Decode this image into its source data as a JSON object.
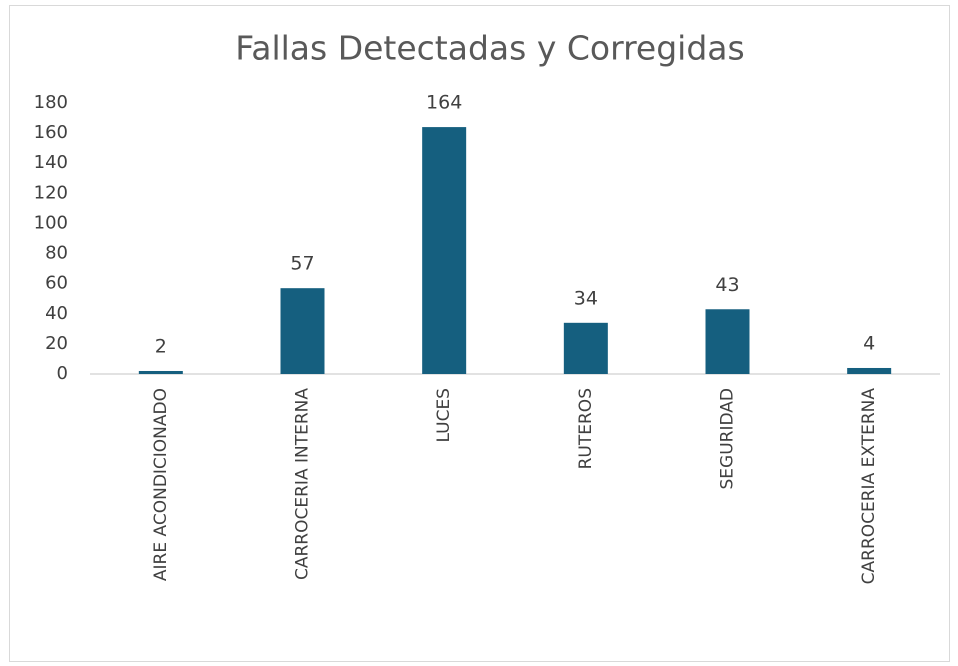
{
  "chart_data": {
    "type": "bar",
    "title": "Fallas Detectadas y Corregidas",
    "categories": [
      "AIRE ACONDICIONADO",
      "CARROCERIA INTERNA",
      "LUCES",
      "RUTEROS",
      "SEGURIDAD",
      "CARROCERIA EXTERNA"
    ],
    "values": [
      2,
      57,
      164,
      34,
      43,
      4
    ],
    "color": "#155f7f",
    "ylim": [
      0,
      180
    ],
    "yticks": [
      0,
      20,
      40,
      60,
      80,
      100,
      120,
      140,
      160,
      180
    ],
    "grid": false
  }
}
